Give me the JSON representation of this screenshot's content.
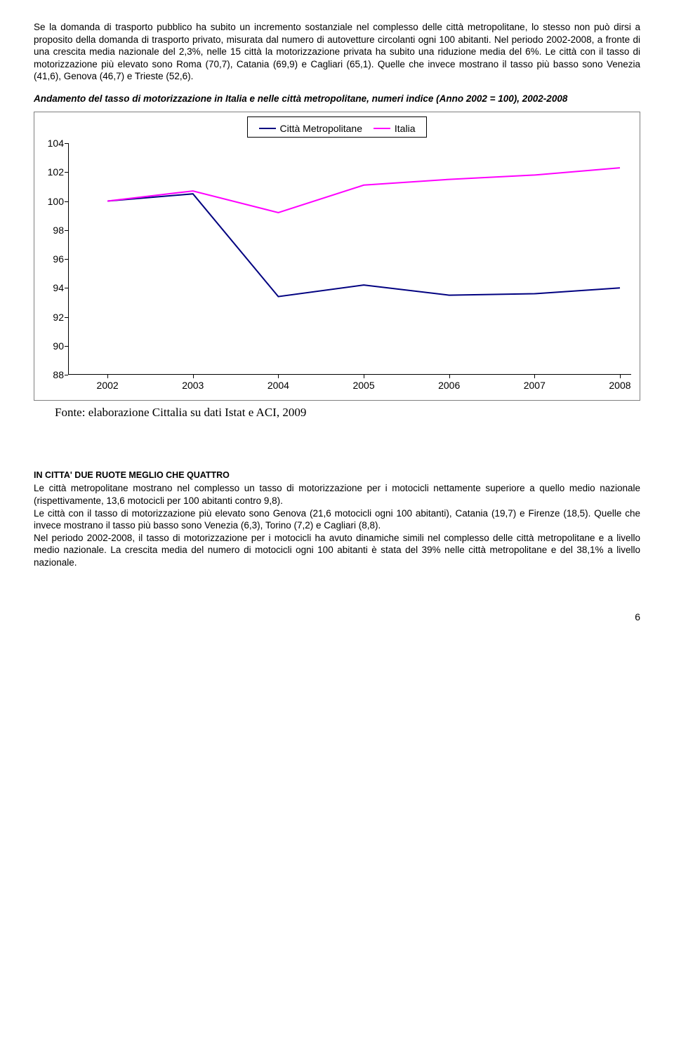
{
  "paragraphs": {
    "p1": "Se la domanda di trasporto pubblico ha subito un incremento sostanziale nel complesso delle città metropolitane, lo stesso non può dirsi a proposito della domanda di trasporto privato, misurata dal numero di autovetture circolanti ogni 100 abitanti. Nel periodo 2002-2008, a fronte di una crescita media nazionale del 2,3%, nelle 15 città la motorizzazione privata ha subito una riduzione media del 6%. Le città con il tasso di motorizzazione più elevato sono Roma (70,7), Catania (69,9) e Cagliari (65,1). Quelle che invece mostrano il tasso più basso sono Venezia (41,6), Genova (46,7) e Trieste (52,6).",
    "chart_title": "Andamento del tasso di motorizzazione in Italia e nelle città metropolitane, numeri indice (Anno 2002 = 100), 2002-2008",
    "p2": "Le città metropolitane mostrano nel complesso un tasso di motorizzazione per i motocicli nettamente superiore a quello medio nazionale (rispettivamente, 13,6 motocicli per 100 abitanti contro 9,8).",
    "p3": "Le città con il tasso di motorizzazione più elevato sono Genova (21,6 motocicli ogni 100 abitanti), Catania (19,7) e Firenze (18,5). Quelle che invece mostrano il tasso più basso sono Venezia (6,3), Torino (7,2) e Cagliari (8,8).",
    "p4": "Nel periodo 2002-2008, il tasso di motorizzazione per i motocicli ha avuto dinamiche simili nel complesso delle città metropolitane e a livello medio nazionale. La crescita media del numero di motocicli ogni 100 abitanti è stata del 39% nelle città metropolitane e del 38,1% a livello nazionale."
  },
  "section_heading": "IN CITTA' DUE RUOTE MEGLIO CHE QUATTRO",
  "fonte": "Fonte: elaborazione Cittalia su dati Istat e ACI, 2009",
  "page_number": "6",
  "chart": {
    "type": "line",
    "legend": [
      {
        "label": "Città Metropolitane",
        "color": "#000080"
      },
      {
        "label": "Italia",
        "color": "#ff00ff"
      }
    ],
    "x_categories": [
      "2002",
      "2003",
      "2004",
      "2005",
      "2006",
      "2007",
      "2008"
    ],
    "ylim": [
      88,
      104
    ],
    "ytick_step": 2,
    "series": [
      {
        "name": "Città Metropolitane",
        "color": "#000080",
        "line_width": 2,
        "values": [
          100.0,
          100.5,
          93.4,
          94.2,
          93.5,
          93.6,
          94.0
        ]
      },
      {
        "name": "Italia",
        "color": "#ff00ff",
        "line_width": 2,
        "values": [
          100.0,
          100.7,
          99.2,
          101.1,
          101.5,
          101.8,
          102.3
        ]
      }
    ],
    "background_color": "#ffffff",
    "tick_fontsize": 14,
    "tick_fontfamily": "Arial"
  }
}
